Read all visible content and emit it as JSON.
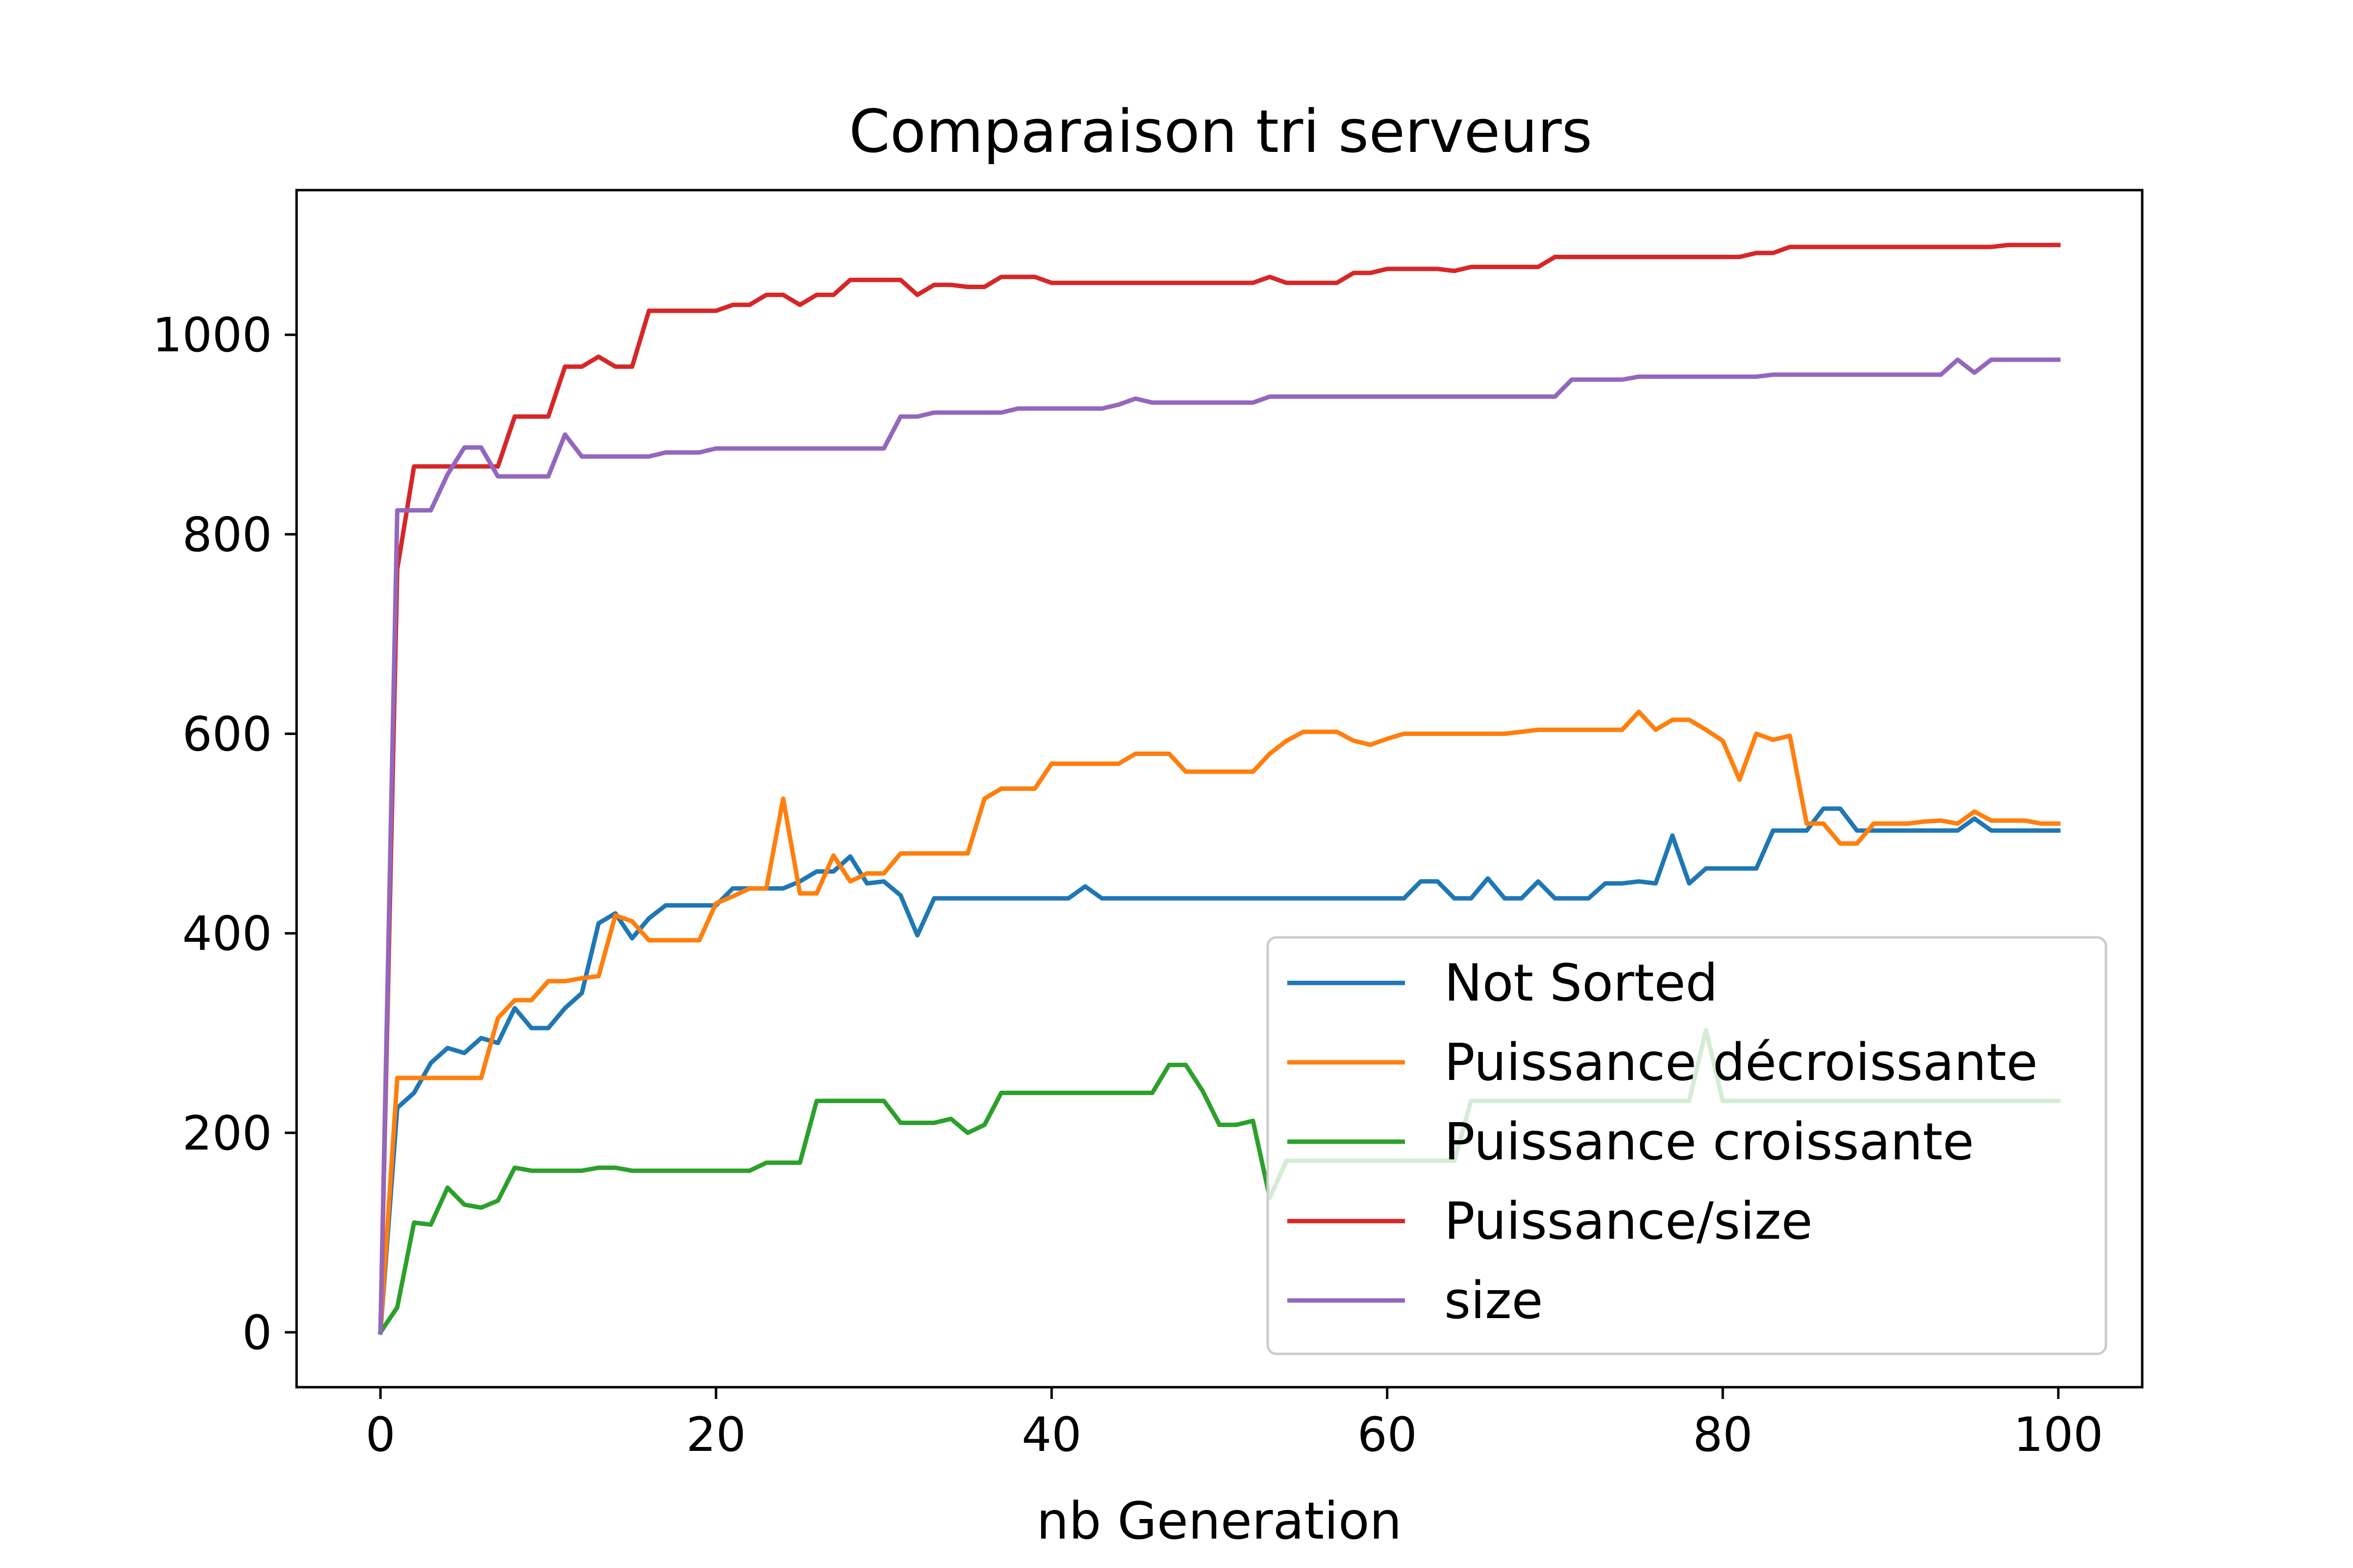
{
  "chart_data": {
    "type": "line",
    "title": "Comparaison tri serveurs",
    "xlabel": "nb Generation",
    "ylabel": "",
    "xlim": [
      -5,
      105
    ],
    "ylim": [
      -55,
      1145
    ],
    "xticks": [
      0,
      20,
      40,
      60,
      80,
      100
    ],
    "yticks": [
      0,
      200,
      400,
      600,
      800,
      1000
    ],
    "grid": false,
    "legend_position": "lower-right",
    "series": [
      {
        "name": "Not Sorted",
        "color": "#1f77b4",
        "values": [
          0,
          225,
          240,
          270,
          285,
          280,
          295,
          290,
          325,
          305,
          305,
          325,
          340,
          410,
          420,
          395,
          415,
          428,
          428,
          428,
          428,
          445,
          445,
          445,
          445,
          452,
          462,
          462,
          477,
          450,
          452,
          438,
          398,
          435,
          435,
          435,
          435,
          435,
          435,
          435,
          435,
          435,
          447,
          435,
          435,
          435,
          435,
          435,
          435,
          435,
          435,
          435,
          435,
          435,
          435,
          435,
          435,
          435,
          435,
          435,
          435,
          435,
          452,
          452,
          435,
          435,
          455,
          435,
          435,
          452,
          435,
          435,
          435,
          450,
          450,
          452,
          450,
          498,
          450,
          465,
          465,
          465,
          465,
          503,
          503,
          503,
          525,
          525,
          503,
          503,
          503,
          503,
          503,
          503,
          503,
          515,
          503,
          503,
          503,
          503,
          503
        ]
      },
      {
        "name": "Puissance décroissante",
        "color": "#ff7f0e",
        "values": [
          0,
          255,
          255,
          255,
          255,
          255,
          255,
          315,
          333,
          333,
          352,
          352,
          355,
          357,
          418,
          412,
          393,
          393,
          393,
          393,
          430,
          437,
          445,
          445,
          535,
          440,
          440,
          478,
          452,
          460,
          460,
          480,
          480,
          480,
          480,
          480,
          535,
          545,
          545,
          545,
          570,
          570,
          570,
          570,
          570,
          580,
          580,
          580,
          562,
          562,
          562,
          562,
          562,
          580,
          593,
          602,
          602,
          602,
          593,
          589,
          595,
          600,
          600,
          600,
          600,
          600,
          600,
          600,
          602,
          604,
          604,
          604,
          604,
          604,
          604,
          622,
          604,
          614,
          614,
          604,
          593,
          554,
          600,
          594,
          598,
          510,
          510,
          490,
          490,
          510,
          510,
          510,
          512,
          513,
          510,
          522,
          513,
          513,
          513,
          510,
          510
        ]
      },
      {
        "name": "Puissance croissante",
        "color": "#2ca02c",
        "values": [
          0,
          25,
          110,
          108,
          145,
          128,
          125,
          132,
          165,
          162,
          162,
          162,
          162,
          165,
          165,
          162,
          162,
          162,
          162,
          162,
          162,
          162,
          162,
          170,
          170,
          170,
          232,
          232,
          232,
          232,
          232,
          210,
          210,
          210,
          214,
          200,
          208,
          240,
          240,
          240,
          240,
          240,
          240,
          240,
          240,
          240,
          240,
          268,
          268,
          242,
          208,
          208,
          212,
          135,
          172,
          172,
          172,
          172,
          172,
          172,
          172,
          172,
          172,
          172,
          172,
          232,
          232,
          232,
          232,
          232,
          232,
          232,
          232,
          232,
          232,
          232,
          232,
          232,
          232,
          303,
          232,
          232,
          232,
          232,
          232,
          232,
          232,
          232,
          232,
          232,
          232,
          232,
          232,
          232,
          232,
          232,
          232,
          232,
          232,
          232,
          232
        ]
      },
      {
        "name": "Puissance/size",
        "color": "#d62728",
        "values": [
          0,
          765,
          868,
          868,
          868,
          868,
          868,
          868,
          918,
          918,
          918,
          968,
          968,
          978,
          968,
          968,
          1024,
          1024,
          1024,
          1024,
          1024,
          1030,
          1030,
          1040,
          1040,
          1030,
          1040,
          1040,
          1055,
          1055,
          1055,
          1055,
          1040,
          1050,
          1050,
          1048,
          1048,
          1058,
          1058,
          1058,
          1052,
          1052,
          1052,
          1052,
          1052,
          1052,
          1052,
          1052,
          1052,
          1052,
          1052,
          1052,
          1052,
          1058,
          1052,
          1052,
          1052,
          1052,
          1062,
          1062,
          1066,
          1066,
          1066,
          1066,
          1064,
          1068,
          1068,
          1068,
          1068,
          1068,
          1078,
          1078,
          1078,
          1078,
          1078,
          1078,
          1078,
          1078,
          1078,
          1078,
          1078,
          1078,
          1082,
          1082,
          1088,
          1088,
          1088,
          1088,
          1088,
          1088,
          1088,
          1088,
          1088,
          1088,
          1088,
          1088,
          1088,
          1090,
          1090,
          1090,
          1090
        ]
      },
      {
        "name": "size",
        "color": "#9467bd",
        "values": [
          0,
          824,
          824,
          824,
          860,
          887,
          887,
          858,
          858,
          858,
          858,
          900,
          878,
          878,
          878,
          878,
          878,
          882,
          882,
          882,
          886,
          886,
          886,
          886,
          886,
          886,
          886,
          886,
          886,
          886,
          886,
          918,
          918,
          922,
          922,
          922,
          922,
          922,
          926,
          926,
          926,
          926,
          926,
          926,
          930,
          936,
          932,
          932,
          932,
          932,
          932,
          932,
          932,
          938,
          938,
          938,
          938,
          938,
          938,
          938,
          938,
          938,
          938,
          938,
          938,
          938,
          938,
          938,
          938,
          938,
          938,
          955,
          955,
          955,
          955,
          958,
          958,
          958,
          958,
          958,
          958,
          958,
          958,
          960,
          960,
          960,
          960,
          960,
          960,
          960,
          960,
          960,
          960,
          960,
          975,
          962,
          975,
          975,
          975,
          975,
          975
        ]
      }
    ]
  }
}
